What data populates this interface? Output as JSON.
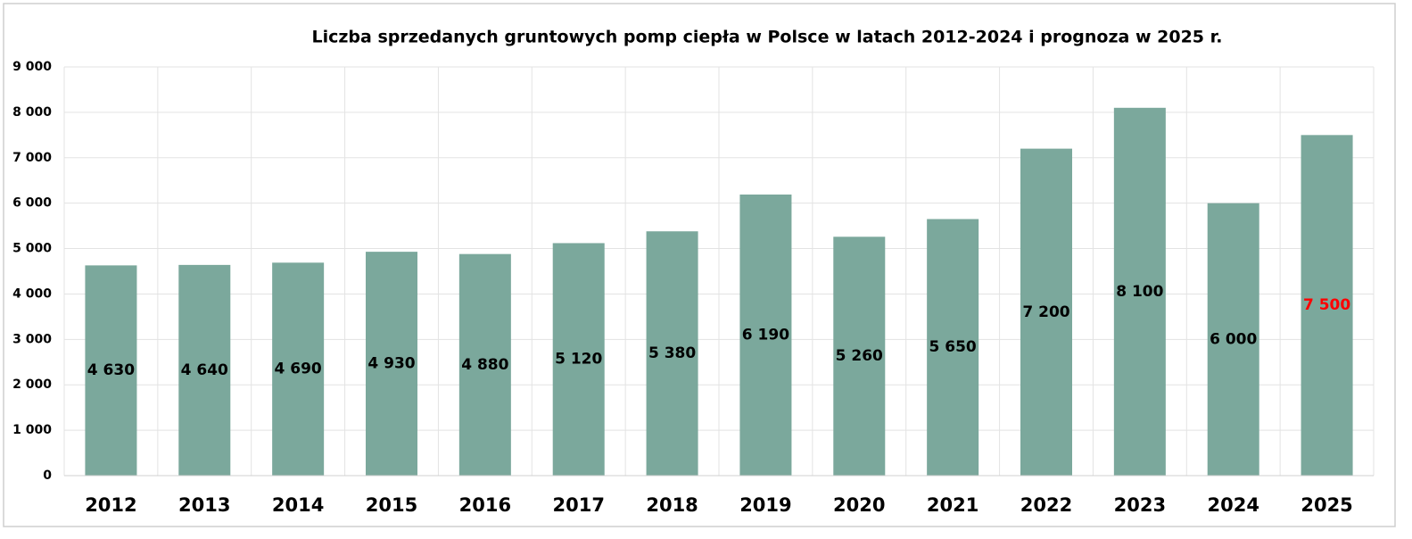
{
  "chart_data": {
    "type": "bar",
    "title": "Liczba sprzedanych gruntowych pomp ciepła w Polsce w latach 2012-2024 i prognoza w 2025 r.",
    "categories": [
      "2012",
      "2013",
      "2014",
      "2015",
      "2016",
      "2017",
      "2018",
      "2019",
      "2020",
      "2021",
      "2022",
      "2023",
      "2024",
      "2025"
    ],
    "values": [
      4630,
      4640,
      4690,
      4930,
      4880,
      5120,
      5380,
      6190,
      5260,
      5650,
      7200,
      8100,
      6000,
      7500
    ],
    "value_labels": [
      "4 630",
      "4 640",
      "4 690",
      "4 930",
      "4 880",
      "5 120",
      "5 380",
      "6 190",
      "5 260",
      "5 650",
      "7 200",
      "8 100",
      "6 000",
      "7 500"
    ],
    "value_label_colors": [
      "#000000",
      "#000000",
      "#000000",
      "#000000",
      "#000000",
      "#000000",
      "#000000",
      "#000000",
      "#000000",
      "#000000",
      "#000000",
      "#000000",
      "#000000",
      "#ff0000"
    ],
    "color": "#7ba89c",
    "ylim": [
      0,
      9000
    ],
    "yticks": [
      0,
      {
        "value": 1000,
        "label": "1 000"
      },
      {
        "value": 2000,
        "label": "2 000"
      },
      {
        "value": 3000,
        "label": "3 000"
      },
      {
        "value": 4000,
        "label": "4 000"
      },
      {
        "value": 5000,
        "label": "5 000"
      },
      {
        "value": 6000,
        "label": "6 000"
      },
      {
        "value": 7000,
        "label": "7 000"
      },
      {
        "value": 8000,
        "label": "8 000"
      },
      {
        "value": 9000,
        "label": "9 000"
      }
    ],
    "grid": true
  }
}
